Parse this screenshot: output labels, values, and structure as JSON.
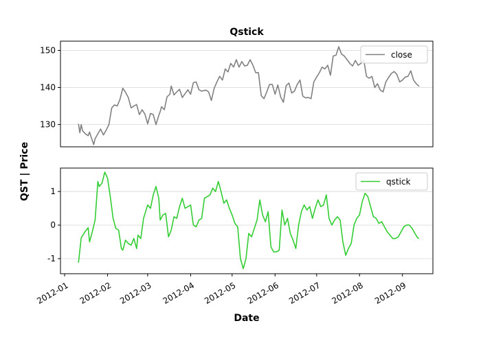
{
  "chart_data": {
    "type": "line",
    "title": "Qstick",
    "xlabel": "Date",
    "ylabel": "QST | Price",
    "x_ticks": [
      "2012-01",
      "2012-02",
      "2012-03",
      "2012-04",
      "2012-05",
      "2012-06",
      "2012-07",
      "2012-08",
      "2012-09"
    ],
    "x_range": [
      "2011-12-29",
      "2012-09-23"
    ],
    "grid": "horizontal",
    "legend_position": "top-right",
    "panels": [
      {
        "id": "price",
        "ylim": [
          124,
          152.5
        ],
        "yticks": [
          130,
          140,
          150
        ],
        "series": [
          {
            "name": "close",
            "color": "#808080",
            "x": [
              "2012-01-11",
              "2012-01-12",
              "2012-01-13",
              "2012-01-14",
              "2012-01-16",
              "2012-01-18",
              "2012-01-19",
              "2012-01-20",
              "2012-01-22",
              "2012-01-23",
              "2012-01-25",
              "2012-01-27",
              "2012-01-29",
              "2012-01-31",
              "2012-02-02",
              "2012-02-04",
              "2012-02-06",
              "2012-02-08",
              "2012-02-10",
              "2012-02-12",
              "2012-02-14",
              "2012-02-16",
              "2012-02-18",
              "2012-02-20",
              "2012-02-22",
              "2012-02-24",
              "2012-02-26",
              "2012-02-28",
              "2012-03-01",
              "2012-03-03",
              "2012-03-05",
              "2012-03-07",
              "2012-03-09",
              "2012-03-10",
              "2012-03-11",
              "2012-03-13",
              "2012-03-15",
              "2012-03-17",
              "2012-03-18",
              "2012-03-20",
              "2012-03-22",
              "2012-03-24",
              "2012-03-26",
              "2012-03-28",
              "2012-03-30",
              "2012-04-01",
              "2012-04-03",
              "2012-04-05",
              "2012-04-07",
              "2012-04-09",
              "2012-04-12",
              "2012-04-14",
              "2012-04-16",
              "2012-04-18",
              "2012-04-20",
              "2012-04-22",
              "2012-04-24",
              "2012-04-26",
              "2012-04-28",
              "2012-04-30",
              "2012-05-02",
              "2012-05-04",
              "2012-05-06",
              "2012-05-08",
              "2012-05-10",
              "2012-05-12",
              "2012-05-14",
              "2012-05-16",
              "2012-05-18",
              "2012-05-20",
              "2012-05-22",
              "2012-05-24",
              "2012-05-26",
              "2012-05-28",
              "2012-05-30",
              "2012-06-01",
              "2012-06-03",
              "2012-06-05",
              "2012-06-07",
              "2012-06-09",
              "2012-06-11",
              "2012-06-13",
              "2012-06-15",
              "2012-06-17",
              "2012-06-19",
              "2012-06-21",
              "2012-06-23",
              "2012-06-25",
              "2012-06-27",
              "2012-06-29",
              "2012-07-01",
              "2012-07-03",
              "2012-07-05",
              "2012-07-07",
              "2012-07-09",
              "2012-07-11",
              "2012-07-13",
              "2012-07-15",
              "2012-07-17",
              "2012-07-19",
              "2012-07-21",
              "2012-07-23",
              "2012-07-25",
              "2012-07-27",
              "2012-07-29",
              "2012-07-31",
              "2012-08-02",
              "2012-08-04",
              "2012-08-06",
              "2012-08-08",
              "2012-08-10",
              "2012-08-12",
              "2012-08-14",
              "2012-08-16",
              "2012-08-18",
              "2012-08-20",
              "2012-08-22",
              "2012-08-24",
              "2012-08-26",
              "2012-08-28",
              "2012-08-30",
              "2012-09-01",
              "2012-09-03",
              "2012-09-05",
              "2012-09-07",
              "2012-09-09",
              "2012-09-11",
              "2012-09-13"
            ],
            "values": [
              130.2,
              127.8,
              130.0,
              128.3,
              127.5,
              127.0,
              128.0,
              126.8,
              124.6,
              126.2,
              127.5,
              128.8,
              127.2,
              128.5,
              130.0,
              134.5,
              135.3,
              135.0,
              136.8,
              139.8,
              138.7,
              137.3,
              134.5,
              135.0,
              135.4,
              132.7,
              134.0,
              132.8,
              130.2,
              133.0,
              132.7,
              130.0,
              132.5,
              133.5,
              134.8,
              134.0,
              137.5,
              138.2,
              140.4,
              138.0,
              138.8,
              139.5,
              137.3,
              138.3,
              139.4,
              138.2,
              141.3,
              141.5,
              139.4,
              139.0,
              139.3,
              138.8,
              136.5,
              139.8,
              141.5,
              143.0,
              142.0,
              145.0,
              144.2,
              146.5,
              145.5,
              147.5,
              145.5,
              147.0,
              145.8,
              146.0,
              147.5,
              146.0,
              144.0,
              144.0,
              137.8,
              137.0,
              138.8,
              140.8,
              140.8,
              138.2,
              140.7,
              137.5,
              136.0,
              140.5,
              141.2,
              138.5,
              139.0,
              140.8,
              142.0,
              137.7,
              137.2,
              137.3,
              137.0,
              141.5,
              142.8,
              144.0,
              145.5,
              145.0,
              146.0,
              143.3,
              148.5,
              148.7,
              151.0,
              149.0,
              148.5,
              147.5,
              146.5,
              145.8,
              147.3,
              146.0,
              146.5,
              147.5,
              143.0,
              142.5,
              143.0,
              140.0,
              141.0,
              139.3,
              138.8,
              141.5,
              142.7,
              143.8,
              144.3,
              143.5,
              141.5,
              142.0,
              142.8,
              143.0,
              144.5,
              142.0,
              141.0,
              140.3
            ]
          }
        ]
      },
      {
        "id": "qst",
        "ylim": [
          -1.45,
          1.7
        ],
        "yticks": [
          -1,
          0,
          1
        ],
        "series": [
          {
            "name": "qstick",
            "color": "#32cd32",
            "x": [
              "2012-01-11",
              "2012-01-13",
              "2012-01-16",
              "2012-01-18",
              "2012-01-19",
              "2012-01-21",
              "2012-01-23",
              "2012-01-25",
              "2012-01-26",
              "2012-01-28",
              "2012-01-30",
              "2012-02-01",
              "2012-02-03",
              "2012-02-05",
              "2012-02-07",
              "2012-02-09",
              "2012-02-11",
              "2012-02-12",
              "2012-02-14",
              "2012-02-16",
              "2012-02-18",
              "2012-02-20",
              "2012-02-22",
              "2012-02-23",
              "2012-02-25",
              "2012-02-27",
              "2012-03-01",
              "2012-03-03",
              "2012-03-05",
              "2012-03-07",
              "2012-03-09",
              "2012-03-10",
              "2012-03-12",
              "2012-03-14",
              "2012-03-16",
              "2012-03-18",
              "2012-03-20",
              "2012-03-22",
              "2012-03-24",
              "2012-03-26",
              "2012-03-28",
              "2012-03-30",
              "2012-04-01",
              "2012-04-03",
              "2012-04-05",
              "2012-04-07",
              "2012-04-09",
              "2012-04-11",
              "2012-04-13",
              "2012-04-15",
              "2012-04-17",
              "2012-04-19",
              "2012-04-21",
              "2012-04-23",
              "2012-04-25",
              "2012-04-27",
              "2012-04-29",
              "2012-05-01",
              "2012-05-03",
              "2012-05-05",
              "2012-05-07",
              "2012-05-09",
              "2012-05-11",
              "2012-05-13",
              "2012-05-15",
              "2012-05-17",
              "2012-05-19",
              "2012-05-21",
              "2012-05-23",
              "2012-05-25",
              "2012-05-27",
              "2012-05-29",
              "2012-05-31",
              "2012-06-02",
              "2012-06-04",
              "2012-06-06",
              "2012-06-08",
              "2012-06-10",
              "2012-06-12",
              "2012-06-14",
              "2012-06-16",
              "2012-06-18",
              "2012-06-20",
              "2012-06-22",
              "2012-06-24",
              "2012-06-26",
              "2012-06-28",
              "2012-06-30",
              "2012-07-02",
              "2012-07-04",
              "2012-07-06",
              "2012-07-08",
              "2012-07-10",
              "2012-07-12",
              "2012-07-14",
              "2012-07-16",
              "2012-07-18",
              "2012-07-20",
              "2012-07-22",
              "2012-07-24",
              "2012-07-26",
              "2012-07-28",
              "2012-07-30",
              "2012-08-01",
              "2012-08-03",
              "2012-08-05",
              "2012-08-07",
              "2012-08-09",
              "2012-08-11",
              "2012-08-13",
              "2012-08-15",
              "2012-08-17",
              "2012-08-19",
              "2012-08-21",
              "2012-08-23",
              "2012-08-25",
              "2012-08-27",
              "2012-08-29",
              "2012-08-31",
              "2012-09-02",
              "2012-09-04",
              "2012-09-06",
              "2012-09-08",
              "2012-09-10",
              "2012-09-12",
              "2012-09-13"
            ],
            "values": [
              -1.12,
              -0.38,
              -0.18,
              -0.08,
              -0.5,
              -0.2,
              0.15,
              1.3,
              1.15,
              1.25,
              1.58,
              1.4,
              0.85,
              0.2,
              -0.1,
              -0.15,
              -0.7,
              -0.75,
              -0.45,
              -0.55,
              -0.6,
              -0.4,
              -0.7,
              -0.3,
              -0.4,
              0.2,
              0.6,
              0.5,
              0.9,
              1.15,
              0.8,
              0.15,
              0.3,
              0.35,
              -0.35,
              -0.15,
              0.25,
              0.2,
              0.55,
              0.8,
              0.5,
              0.55,
              0.6,
              0.0,
              -0.05,
              0.15,
              0.2,
              0.8,
              0.85,
              0.9,
              1.1,
              1.0,
              1.3,
              1.0,
              0.65,
              0.75,
              0.5,
              0.3,
              0.05,
              -0.05,
              -1.0,
              -1.3,
              -1.0,
              -0.25,
              -0.35,
              -0.1,
              0.15,
              0.75,
              0.3,
              0.1,
              0.4,
              -0.65,
              -0.8,
              -0.8,
              -0.75,
              0.45,
              0.0,
              0.2,
              -0.25,
              -0.45,
              -0.7,
              0.0,
              0.4,
              0.6,
              0.45,
              0.55,
              0.2,
              0.5,
              0.75,
              0.55,
              0.6,
              0.9,
              0.2,
              0.0,
              0.15,
              0.25,
              0.15,
              -0.5,
              -0.9,
              -0.7,
              -0.55,
              0.0,
              0.2,
              0.3,
              0.7,
              0.95,
              0.85,
              0.55,
              0.25,
              0.2,
              0.05,
              0.1,
              -0.05,
              -0.2,
              -0.3,
              -0.4,
              -0.4,
              -0.35,
              -0.2,
              -0.05,
              0.0,
              0.0,
              -0.1,
              -0.25,
              -0.38,
              -0.4
            ]
          }
        ]
      }
    ]
  }
}
